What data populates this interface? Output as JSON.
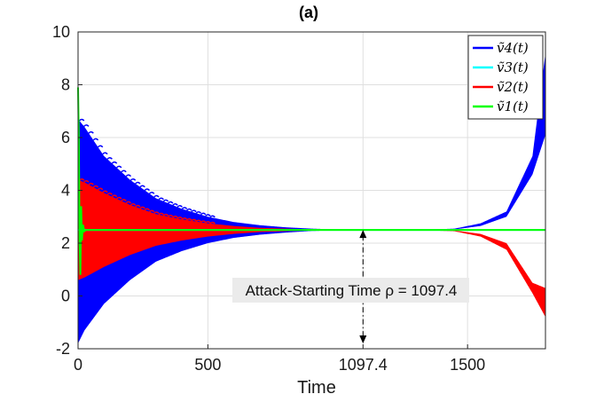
{
  "chart_data": {
    "type": "line",
    "title": "(a)",
    "xlabel": "Time",
    "ylabel": "",
    "xlim": [
      0,
      1800
    ],
    "ylim": [
      -2,
      10
    ],
    "xticks": [
      0,
      500,
      1097.4,
      1500
    ],
    "xtick_labels": [
      "0",
      "500",
      "1097.4",
      "1500"
    ],
    "yticks": [
      -2,
      0,
      2,
      4,
      6,
      8,
      10
    ],
    "ytick_labels": [
      "-2",
      "0",
      "2",
      "4",
      "6",
      "8",
      "10"
    ],
    "grid": true,
    "legend_position": "top-right",
    "consensus_value": 2.5,
    "series": [
      {
        "name": "ṽ4(t)",
        "color": "#0000ff",
        "style": "oscillating-band",
        "upper": [
          [
            0,
            6.7
          ],
          [
            25,
            6.4
          ],
          [
            100,
            5.3
          ],
          [
            200,
            4.4
          ],
          [
            300,
            3.7
          ],
          [
            400,
            3.3
          ],
          [
            500,
            3.0
          ],
          [
            600,
            2.8
          ],
          [
            700,
            2.68
          ],
          [
            800,
            2.6
          ],
          [
            900,
            2.55
          ],
          [
            1000,
            2.52
          ],
          [
            1097.4,
            2.5
          ],
          [
            1300,
            2.5
          ],
          [
            1450,
            2.55
          ],
          [
            1550,
            2.75
          ],
          [
            1650,
            3.2
          ],
          [
            1750,
            5.3
          ],
          [
            1800,
            9.2
          ]
        ],
        "lower": [
          [
            0,
            -1.8
          ],
          [
            25,
            -1.3
          ],
          [
            100,
            -0.3
          ],
          [
            200,
            0.6
          ],
          [
            300,
            1.3
          ],
          [
            400,
            1.7
          ],
          [
            500,
            2.0
          ],
          [
            600,
            2.2
          ],
          [
            700,
            2.32
          ],
          [
            800,
            2.4
          ],
          [
            900,
            2.46
          ],
          [
            1000,
            2.49
          ],
          [
            1097.4,
            2.5
          ],
          [
            1300,
            2.5
          ],
          [
            1450,
            2.52
          ],
          [
            1550,
            2.65
          ],
          [
            1650,
            3.0
          ],
          [
            1750,
            4.6
          ],
          [
            1800,
            6.1
          ]
        ]
      },
      {
        "name": "ṽ3(t)",
        "color": "#00ffff",
        "style": "line",
        "values": [
          [
            0,
            2.5
          ],
          [
            1800,
            2.5
          ]
        ]
      },
      {
        "name": "ṽ2(t)",
        "color": "#ff0000",
        "style": "oscillating-band",
        "upper": [
          [
            0,
            4.4
          ],
          [
            25,
            4.3
          ],
          [
            100,
            3.9
          ],
          [
            200,
            3.45
          ],
          [
            300,
            3.1
          ],
          [
            400,
            2.9
          ],
          [
            500,
            2.75
          ],
          [
            600,
            2.65
          ],
          [
            700,
            2.58
          ],
          [
            800,
            2.55
          ],
          [
            900,
            2.52
          ],
          [
            1000,
            2.51
          ],
          [
            1097.4,
            2.5
          ],
          [
            1300,
            2.5
          ],
          [
            1450,
            2.48
          ],
          [
            1550,
            2.35
          ],
          [
            1650,
            2.0
          ],
          [
            1750,
            0.5
          ],
          [
            1800,
            0.3
          ]
        ],
        "lower": [
          [
            0,
            0.6
          ],
          [
            25,
            0.7
          ],
          [
            100,
            1.1
          ],
          [
            200,
            1.55
          ],
          [
            300,
            1.9
          ],
          [
            400,
            2.1
          ],
          [
            500,
            2.25
          ],
          [
            600,
            2.35
          ],
          [
            700,
            2.42
          ],
          [
            800,
            2.45
          ],
          [
            900,
            2.48
          ],
          [
            1000,
            2.49
          ],
          [
            1097.4,
            2.5
          ],
          [
            1300,
            2.5
          ],
          [
            1450,
            2.45
          ],
          [
            1550,
            2.25
          ],
          [
            1650,
            1.75
          ],
          [
            1750,
            0.1
          ],
          [
            1800,
            -0.8
          ]
        ]
      },
      {
        "name": "ṽ1(t)",
        "color": "#00ff00",
        "style": "line",
        "values": [
          [
            0,
            7.9
          ],
          [
            3,
            6.0
          ],
          [
            6,
            2.0
          ],
          [
            9,
            0.8
          ],
          [
            12,
            3.4
          ],
          [
            15,
            2.1
          ],
          [
            19,
            2.7
          ],
          [
            24,
            2.45
          ],
          [
            30,
            2.5
          ],
          [
            1800,
            2.5
          ]
        ]
      }
    ],
    "annotation": {
      "text": "Attack-Starting Time ρ = 1097.4",
      "x": 1097.4,
      "arrow_from_y": 2.5,
      "arrow_to_y": -1.8
    }
  }
}
